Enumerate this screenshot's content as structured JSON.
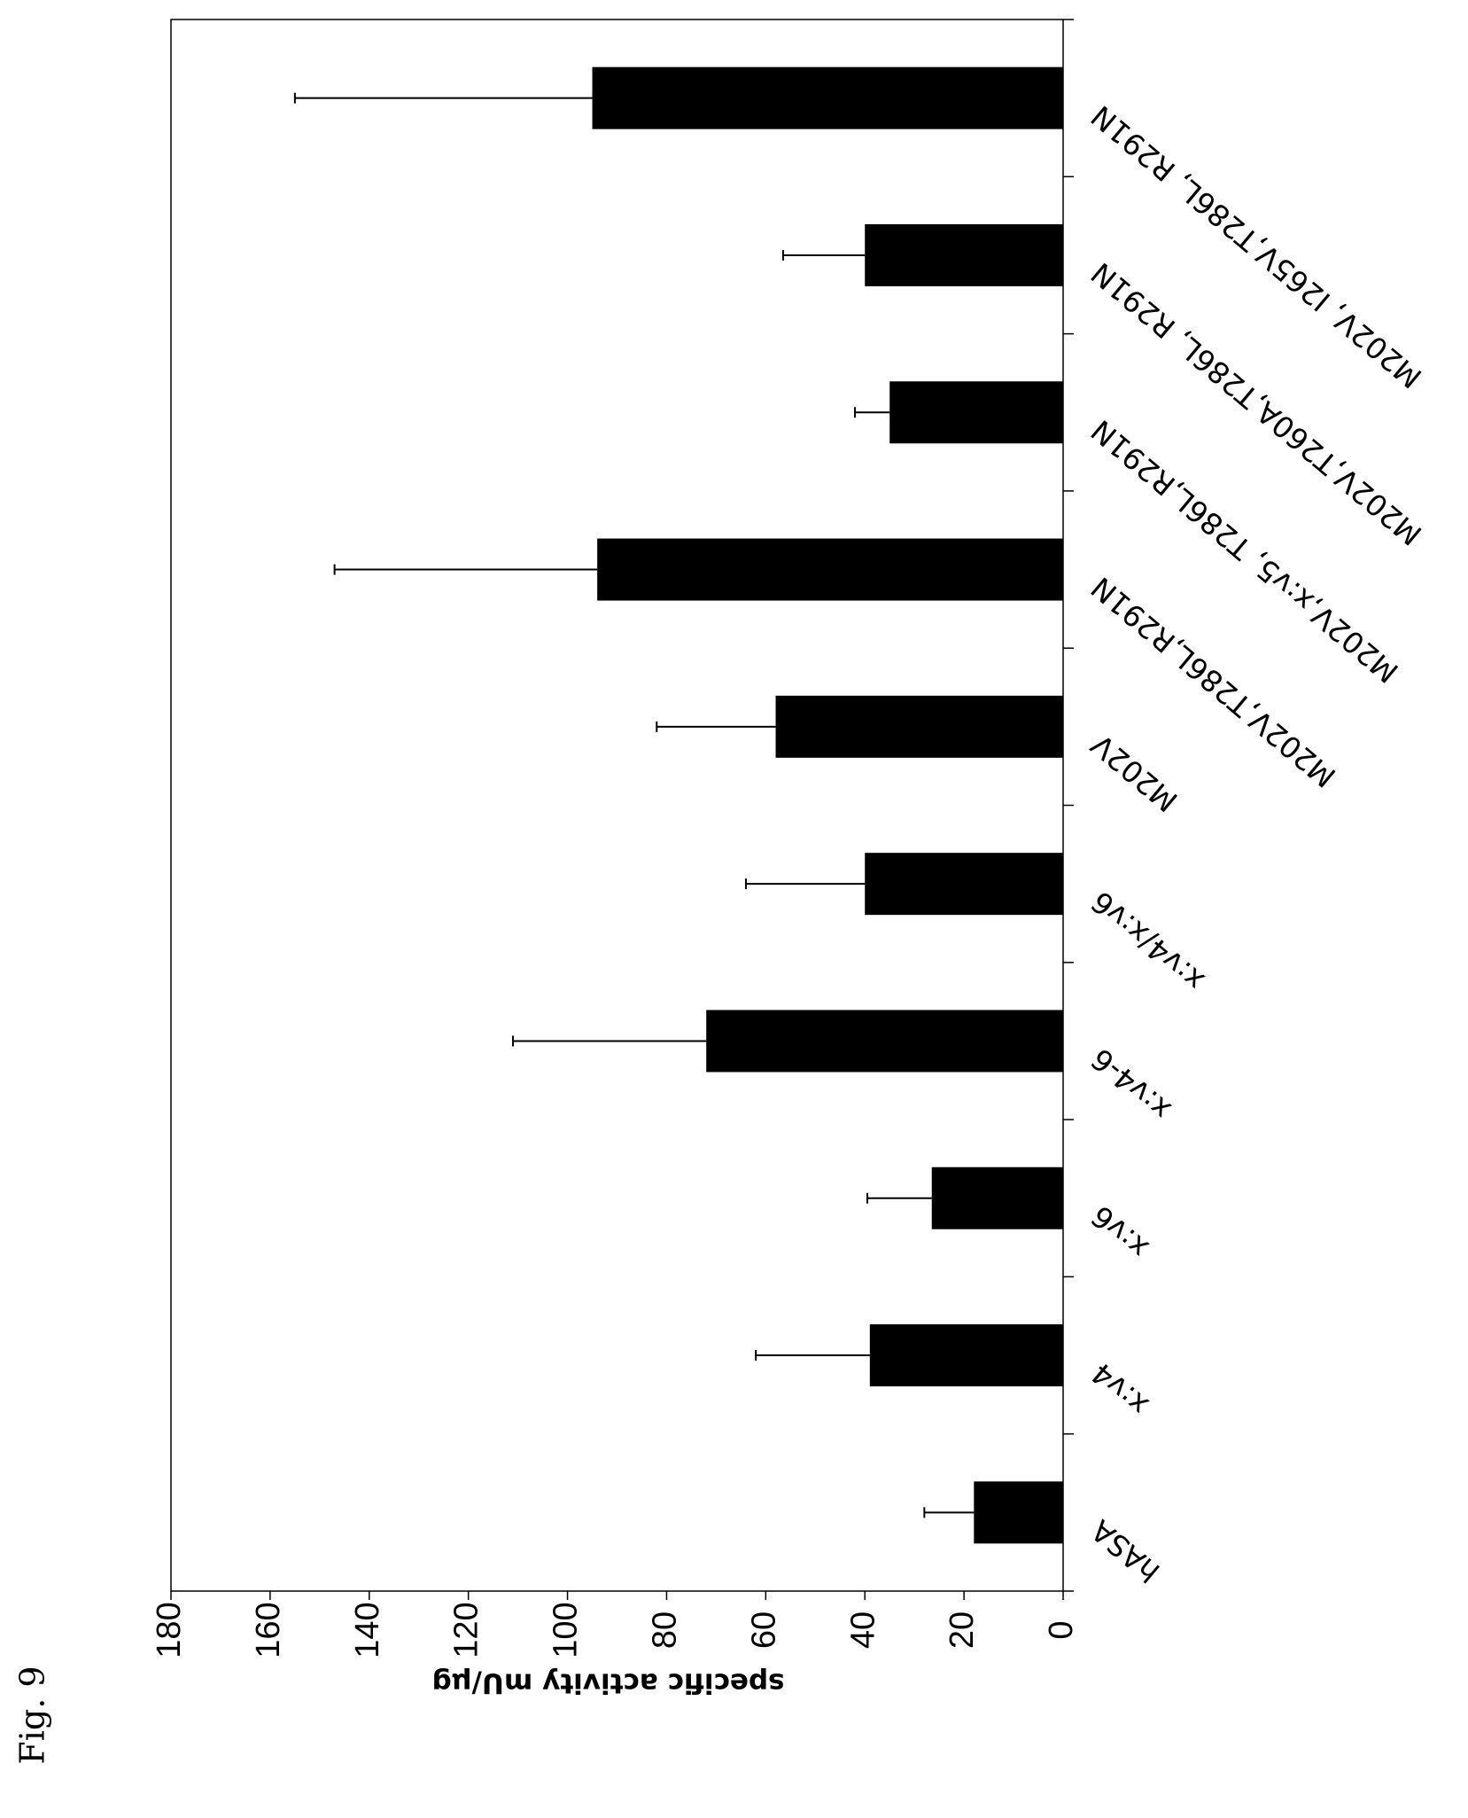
{
  "figure_label": "Fig. 9",
  "chart_data": {
    "type": "bar",
    "orientation": "rotated-180",
    "title": "",
    "xlabel": "",
    "ylabel": "specific activity mU/µg",
    "ylim": [
      0,
      180
    ],
    "yticks": [
      0,
      20,
      40,
      60,
      80,
      100,
      120,
      140,
      160,
      180
    ],
    "grid": false,
    "legend": "none",
    "categories": [
      "hASA",
      "x:v4",
      "x:v6",
      "x:v4-6",
      "x:v4/x:v6",
      "M202V",
      "M202V,T286L,R291N",
      "M202V,x:v5, T286L,R291N",
      "M202V,T260A,T286L, R291N",
      "M202V, I265V,T286L, R291N"
    ],
    "values": [
      18,
      39,
      26.5,
      72,
      40,
      58,
      94,
      35,
      40,
      95
    ],
    "errors": [
      10,
      23,
      13,
      39,
      24,
      24,
      53,
      7,
      16.5,
      60
    ],
    "colors": {
      "bar": "#000000",
      "axis": "#000000",
      "background": "#ffffff"
    }
  }
}
